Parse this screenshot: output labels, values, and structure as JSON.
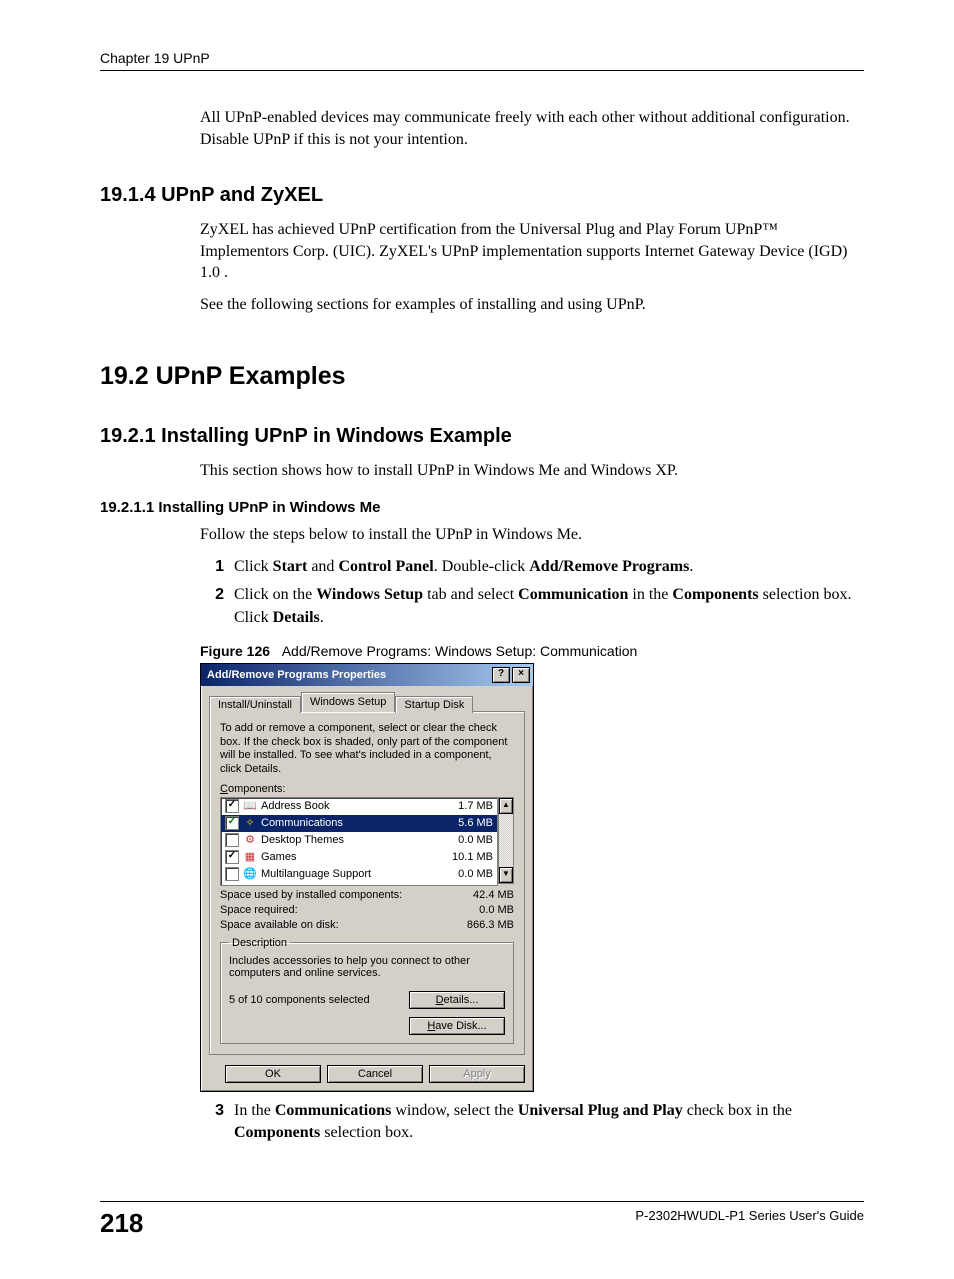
{
  "header": {
    "chapter_line": "Chapter 19 UPnP"
  },
  "intro_para": "All UPnP-enabled devices may communicate freely with each other without additional configuration. Disable UPnP if this is not your intention.",
  "s1914": {
    "title": "19.1.4  UPnP and ZyXEL",
    "p1": "ZyXEL has achieved UPnP certification from the Universal Plug and Play Forum UPnP™ Implementors Corp. (UIC). ZyXEL's UPnP implementation supports Internet Gateway Device (IGD) 1.0 .",
    "p2": "See the following sections for examples of installing and using UPnP."
  },
  "s192": {
    "title": "19.2  UPnP Examples"
  },
  "s1921": {
    "title": "19.2.1  Installing UPnP in Windows Example",
    "p1": "This section shows how to install UPnP in Windows Me and Windows XP."
  },
  "s19211": {
    "title": "19.2.1.1  Installing UPnP in Windows Me",
    "p1": "Follow the steps below to install the UPnP in Windows Me."
  },
  "steps": {
    "n1": "1",
    "t1_a": "Click ",
    "t1_b1": "Start",
    "t1_c": " and ",
    "t1_b2": "Control Panel",
    "t1_d": ". Double-click ",
    "t1_b3": "Add/Remove Programs",
    "t1_e": ".",
    "n2": "2",
    "t2_a": "Click on the ",
    "t2_b1": "Windows Setup",
    "t2_c": " tab and select ",
    "t2_b2": "Communication",
    "t2_d": " in the ",
    "t2_b3": "Components",
    "t2_e": " selection box. Click ",
    "t2_b4": "Details",
    "t2_f": ".",
    "n3": "3",
    "t3_a": "In the ",
    "t3_b1": "Communications",
    "t3_c": " window, select the ",
    "t3_b2": "Universal Plug and Play",
    "t3_d": " check box in the ",
    "t3_b3": "Components",
    "t3_e": " selection box."
  },
  "figure": {
    "label": "Figure 126",
    "caption": "Add/Remove Programs: Windows Setup: Communication"
  },
  "dialog": {
    "title": "Add/Remove Programs Properties",
    "help_glyph": "?",
    "close_glyph": "×",
    "tabs": {
      "t1": "Install/Uninstall",
      "t2": "Windows Setup",
      "t3": "Startup Disk"
    },
    "instruction": "To add or remove a component, select or clear the check box. If the check box is shaded, only part of the component will be installed. To see what's included in a component, click Details.",
    "components_label": "Components:",
    "components": [
      {
        "checked": true,
        "icon": "📖",
        "icon_class": "ic-book",
        "name": "Address Book",
        "size": "1.7 MB",
        "selected": false
      },
      {
        "checked": true,
        "icon": "✧",
        "icon_class": "ic-comm",
        "name": "Communications",
        "size": "5.6 MB",
        "selected": true
      },
      {
        "checked": false,
        "icon": "⚙",
        "icon_class": "ic-theme",
        "name": "Desktop Themes",
        "size": "0.0 MB",
        "selected": false
      },
      {
        "checked": true,
        "icon": "▦",
        "icon_class": "ic-games",
        "name": "Games",
        "size": "10.1 MB",
        "selected": false
      },
      {
        "checked": false,
        "icon": "🌐",
        "icon_class": "ic-globe",
        "name": "Multilanguage Support",
        "size": "0.0 MB",
        "selected": false
      }
    ],
    "space_used_label": "Space used by installed components:",
    "space_used_value": "42.4 MB",
    "space_required_label": "Space required:",
    "space_required_value": "0.0 MB",
    "space_available_label": "Space available on disk:",
    "space_available_value": "866.3 MB",
    "description_legend": "Description",
    "description_text": "Includes accessories to help you connect to other computers and online services.",
    "selected_count_text": "5 of 10 components selected",
    "details_btn": "Details...",
    "have_disk_btn": "Have Disk...",
    "ok_btn": "OK",
    "cancel_btn": "Cancel",
    "apply_btn": "Apply",
    "scroll_up": "▲",
    "scroll_down": "▼"
  },
  "footer": {
    "page_number": "218",
    "guide": "P-2302HWUDL-P1 Series User's Guide"
  }
}
